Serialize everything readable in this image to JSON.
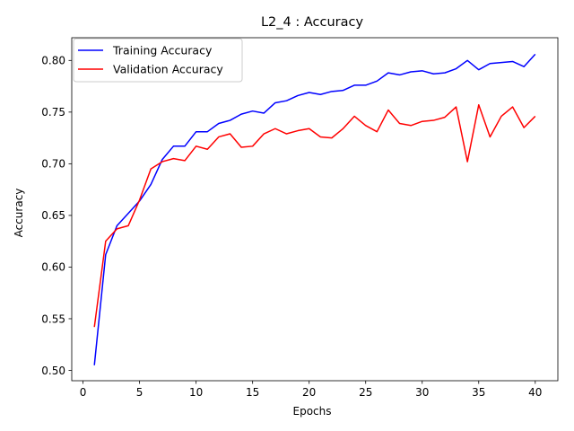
{
  "chart_data": {
    "type": "line",
    "title": "L2_4 : Accuracy",
    "xlabel": "Epochs",
    "ylabel": "Accuracy",
    "xlim": [
      -1.0,
      42.0
    ],
    "ylim": [
      0.49,
      0.822
    ],
    "xticks": [
      0,
      5,
      10,
      15,
      20,
      25,
      30,
      35,
      40
    ],
    "yticks": [
      0.5,
      0.55,
      0.6,
      0.65,
      0.7,
      0.75,
      0.8
    ],
    "grid": false,
    "legend_position": "upper-left",
    "series": [
      {
        "name": "Training Accuracy",
        "color": "#0000ff",
        "x": [
          1,
          2,
          3,
          4,
          5,
          6,
          7,
          8,
          9,
          10,
          11,
          12,
          13,
          14,
          15,
          16,
          17,
          18,
          19,
          20,
          21,
          22,
          23,
          24,
          25,
          26,
          27,
          28,
          29,
          30,
          31,
          32,
          33,
          34,
          35,
          36,
          37,
          38,
          39,
          40
        ],
        "values": [
          0.505,
          0.612,
          0.64,
          0.652,
          0.664,
          0.68,
          0.704,
          0.717,
          0.717,
          0.731,
          0.731,
          0.739,
          0.742,
          0.748,
          0.751,
          0.749,
          0.759,
          0.761,
          0.766,
          0.769,
          0.767,
          0.77,
          0.771,
          0.776,
          0.776,
          0.78,
          0.788,
          0.786,
          0.789,
          0.79,
          0.787,
          0.788,
          0.792,
          0.8,
          0.791,
          0.797,
          0.798,
          0.799,
          0.794,
          0.806
        ]
      },
      {
        "name": "Validation Accuracy",
        "color": "#ff0000",
        "x": [
          1,
          2,
          3,
          4,
          5,
          6,
          7,
          8,
          9,
          10,
          11,
          12,
          13,
          14,
          15,
          16,
          17,
          18,
          19,
          20,
          21,
          22,
          23,
          24,
          25,
          26,
          27,
          28,
          29,
          30,
          31,
          32,
          33,
          34,
          35,
          36,
          37,
          38,
          39,
          40
        ],
        "values": [
          0.542,
          0.625,
          0.637,
          0.64,
          0.665,
          0.695,
          0.702,
          0.705,
          0.703,
          0.717,
          0.714,
          0.726,
          0.729,
          0.716,
          0.717,
          0.729,
          0.734,
          0.729,
          0.732,
          0.734,
          0.726,
          0.725,
          0.734,
          0.746,
          0.737,
          0.731,
          0.752,
          0.739,
          0.737,
          0.741,
          0.742,
          0.745,
          0.755,
          0.702,
          0.757,
          0.726,
          0.746,
          0.755,
          0.735,
          0.746
        ]
      }
    ]
  }
}
